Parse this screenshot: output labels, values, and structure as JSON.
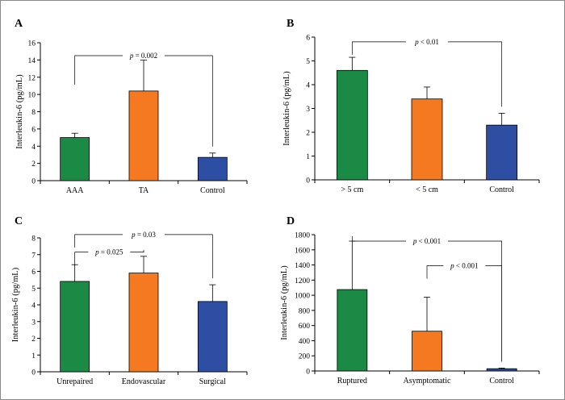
{
  "colors": {
    "green": "#1a8a45",
    "orange": "#f47920",
    "blue": "#2d4ea3"
  },
  "chart_data": [
    {
      "panel": "A",
      "type": "bar",
      "ylabel": "Interleukin-6 (pg/mL)",
      "ylim": [
        0,
        16
      ],
      "yticks": [
        "0",
        "2",
        "4",
        "6",
        "8",
        "10",
        "12",
        "14",
        "16"
      ],
      "categories": [
        "AAA",
        "TA",
        "Control"
      ],
      "values": [
        5.0,
        10.4,
        2.7
      ],
      "errors": [
        0.5,
        3.6,
        0.5
      ],
      "bar_colors": [
        "#1a8a45",
        "#f47920",
        "#2d4ea3"
      ],
      "brackets": [
        {
          "from": 0,
          "to": 2,
          "level": 14.5,
          "label": "p = 0.002"
        }
      ]
    },
    {
      "panel": "B",
      "type": "bar",
      "ylabel": "Interleukin-6 (pg/mL)",
      "ylim": [
        0,
        6
      ],
      "yticks": [
        "0",
        "1",
        "2",
        "3",
        "4",
        "5",
        "6"
      ],
      "categories": [
        "> 5 cm",
        "< 5 cm",
        "Control"
      ],
      "values": [
        4.6,
        3.4,
        2.3
      ],
      "errors": [
        0.55,
        0.5,
        0.5
      ],
      "bar_colors": [
        "#1a8a45",
        "#f47920",
        "#2d4ea3"
      ],
      "brackets": [
        {
          "from": 0,
          "to": 2,
          "level": 5.8,
          "label": "p < 0.01"
        }
      ]
    },
    {
      "panel": "C",
      "type": "bar",
      "ylabel": "Interleukin-6 (pg/mL)",
      "ylim": [
        0,
        8
      ],
      "yticks": [
        "0",
        "1",
        "2",
        "3",
        "4",
        "5",
        "6",
        "7",
        "8"
      ],
      "categories": [
        "Unrepaired",
        "Endovascular",
        "Surgical"
      ],
      "values": [
        5.4,
        5.9,
        4.2
      ],
      "errors": [
        1.0,
        1.0,
        1.0
      ],
      "bar_colors": [
        "#1a8a45",
        "#f47920",
        "#2d4ea3"
      ],
      "brackets": [
        {
          "from": 0,
          "to": 1,
          "level": 7.15,
          "label": "p = 0.025"
        },
        {
          "from": 0,
          "to": 2,
          "level": 8.2,
          "label": "p = 0.03"
        }
      ]
    },
    {
      "panel": "D",
      "type": "bar",
      "ylabel": "Interleukin-6 (pg/mL)",
      "ylim": [
        0,
        1800
      ],
      "yticks": [
        "0",
        "200",
        "400",
        "600",
        "800",
        "1000",
        "1200",
        "1400",
        "1600",
        "1800"
      ],
      "categories": [
        "Ruptured",
        "Asymptomatic",
        "Control"
      ],
      "values": [
        1075,
        525,
        30
      ],
      "errors": [
        640,
        450,
        8
      ],
      "bar_colors": [
        "#1a8a45",
        "#f47920",
        "#2d4ea3"
      ],
      "brackets": [
        {
          "from": 0,
          "to": 2,
          "level": 1715,
          "label": "p < 0.001",
          "tall": true
        },
        {
          "from": 1,
          "to": 2,
          "level": 1390,
          "label": "p < 0.001"
        }
      ]
    }
  ]
}
